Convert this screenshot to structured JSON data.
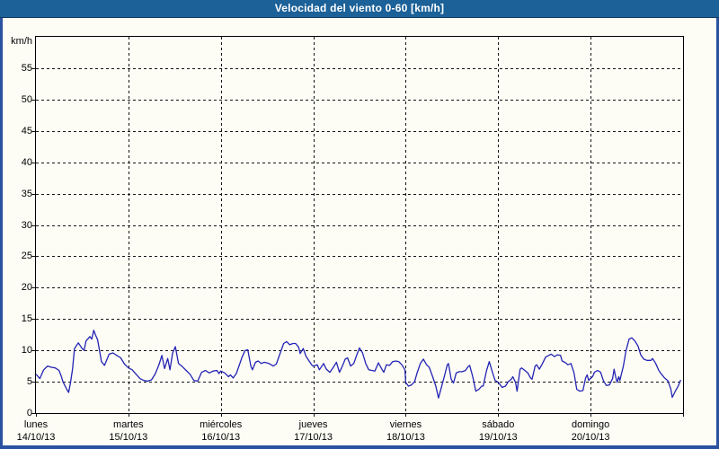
{
  "window": {
    "title": "Velocidad del viento 0-60 [km/h]",
    "title_bar_color": "#1c6198",
    "frame_color": "#2a52a0",
    "background_color": "#fdfdf6"
  },
  "chart_data": {
    "type": "line",
    "title": "Velocidad del viento 0-60 [km/h]",
    "ylabel": "km/h",
    "xlabel": "",
    "ylim": [
      0,
      60
    ],
    "xlim_hours": [
      0,
      168
    ],
    "y_ticks": [
      0,
      5,
      10,
      15,
      20,
      25,
      30,
      35,
      40,
      45,
      50,
      55
    ],
    "grid": "dashed",
    "legend": "none",
    "grid_color": "#141414",
    "x_categories": [
      {
        "day": "lunes",
        "date": "14/10/13"
      },
      {
        "day": "martes",
        "date": "15/10/13"
      },
      {
        "day": "miércoles",
        "date": "16/10/13"
      },
      {
        "day": "jueves",
        "date": "17/10/13"
      },
      {
        "day": "viernes",
        "date": "18/10/13"
      },
      {
        "day": "sábado",
        "date": "19/10/13"
      },
      {
        "day": "domingo",
        "date": "20/10/13"
      }
    ],
    "series": [
      {
        "name": "velocidad del viento",
        "color": "#2323b4",
        "x_unit": "hours_from_start",
        "points": [
          [
            0,
            6.2
          ],
          [
            1,
            5.5
          ],
          [
            2,
            6.9
          ],
          [
            3,
            7.5
          ],
          [
            4,
            7.3
          ],
          [
            5,
            7.2
          ],
          [
            6,
            6.8
          ],
          [
            6.5,
            6.0
          ],
          [
            7,
            5.0
          ],
          [
            8,
            3.8
          ],
          [
            8.5,
            3.3
          ],
          [
            9,
            5.0
          ],
          [
            9.5,
            7.0
          ],
          [
            10,
            10.3
          ],
          [
            11,
            11.2
          ],
          [
            12,
            10.3
          ],
          [
            12.5,
            10.0
          ],
          [
            13,
            11.5
          ],
          [
            14,
            12.2
          ],
          [
            14.5,
            11.8
          ],
          [
            15,
            13.2
          ],
          [
            15.5,
            12.4
          ],
          [
            16,
            11.7
          ],
          [
            17,
            8.2
          ],
          [
            17.8,
            7.6
          ],
          [
            19,
            9.4
          ],
          [
            20,
            9.6
          ],
          [
            21,
            9.2
          ],
          [
            22,
            8.8
          ],
          [
            23,
            7.8
          ],
          [
            24,
            7.2
          ],
          [
            25,
            6.9
          ],
          [
            26,
            6.2
          ],
          [
            27,
            5.5
          ],
          [
            28,
            5.2
          ],
          [
            29,
            5.1
          ],
          [
            30,
            5.3
          ],
          [
            31,
            6.3
          ],
          [
            32,
            7.8
          ],
          [
            32.7,
            9.2
          ],
          [
            33.4,
            7.1
          ],
          [
            34.2,
            8.7
          ],
          [
            34.8,
            6.9
          ],
          [
            35.5,
            9.6
          ],
          [
            36.2,
            10.6
          ],
          [
            37,
            7.9
          ],
          [
            38,
            7.4
          ],
          [
            39,
            6.8
          ],
          [
            40,
            6.2
          ],
          [
            41,
            5.2
          ],
          [
            42,
            5.1
          ],
          [
            43,
            6.5
          ],
          [
            44,
            6.8
          ],
          [
            45,
            6.4
          ],
          [
            46,
            6.7
          ],
          [
            47,
            6.8
          ],
          [
            47.5,
            6.3
          ],
          [
            48,
            6.7
          ],
          [
            49,
            6.4
          ],
          [
            50,
            5.8
          ],
          [
            50.5,
            6.1
          ],
          [
            51.2,
            5.6
          ],
          [
            52,
            6.3
          ],
          [
            52.7,
            7.5
          ],
          [
            53.5,
            8.9
          ],
          [
            54.3,
            10.0
          ],
          [
            55,
            10.1
          ],
          [
            55.8,
            7.5
          ],
          [
            56.2,
            6.9
          ],
          [
            57,
            8.1
          ],
          [
            57.7,
            8.3
          ],
          [
            58.5,
            7.9
          ],
          [
            59.3,
            8.1
          ],
          [
            60.5,
            7.9
          ],
          [
            61.6,
            7.5
          ],
          [
            62.4,
            7.8
          ],
          [
            63.6,
            9.9
          ],
          [
            64.3,
            11.1
          ],
          [
            65.1,
            11.4
          ],
          [
            65.9,
            10.9
          ],
          [
            66.7,
            11.1
          ],
          [
            67.4,
            11.1
          ],
          [
            68.2,
            10.5
          ],
          [
            68.6,
            9.5
          ],
          [
            69.4,
            10.3
          ],
          [
            70.1,
            9.1
          ],
          [
            70.9,
            8.3
          ],
          [
            71.7,
            7.6
          ],
          [
            72,
            7.5
          ],
          [
            73,
            7.7
          ],
          [
            73.6,
            6.9
          ],
          [
            74.7,
            7.9
          ],
          [
            75.4,
            7.0
          ],
          [
            76.3,
            6.5
          ],
          [
            77.2,
            7.3
          ],
          [
            78,
            8.1
          ],
          [
            78.8,
            6.5
          ],
          [
            79.5,
            7.4
          ],
          [
            80.3,
            8.6
          ],
          [
            80.9,
            8.8
          ],
          [
            81.7,
            7.5
          ],
          [
            82.5,
            7.9
          ],
          [
            83.3,
            9.3
          ],
          [
            84,
            10.4
          ],
          [
            84.8,
            9.6
          ],
          [
            85.6,
            7.9
          ],
          [
            86.4,
            6.9
          ],
          [
            87.2,
            6.8
          ],
          [
            88,
            6.7
          ],
          [
            88.9,
            8.0
          ],
          [
            89.9,
            6.9
          ],
          [
            90.3,
            6.5
          ],
          [
            91,
            7.7
          ],
          [
            91.8,
            7.6
          ],
          [
            92.6,
            8.2
          ],
          [
            93.4,
            8.3
          ],
          [
            94.2,
            8.2
          ],
          [
            95,
            7.7
          ],
          [
            95.8,
            6.9
          ],
          [
            96,
            4.9
          ],
          [
            96.7,
            4.3
          ],
          [
            97.5,
            4.5
          ],
          [
            98.3,
            5.0
          ],
          [
            99,
            6.5
          ],
          [
            99.8,
            7.9
          ],
          [
            100.6,
            8.6
          ],
          [
            101.4,
            7.7
          ],
          [
            102.1,
            7.3
          ],
          [
            103,
            5.8
          ],
          [
            103.8,
            4.3
          ],
          [
            104.5,
            2.4
          ],
          [
            105.3,
            4.2
          ],
          [
            106,
            5.8
          ],
          [
            106.8,
            7.7
          ],
          [
            107.1,
            7.9
          ],
          [
            107.8,
            5.4
          ],
          [
            108.4,
            4.8
          ],
          [
            109.1,
            6.4
          ],
          [
            109.9,
            6.6
          ],
          [
            110.7,
            6.6
          ],
          [
            111.5,
            6.8
          ],
          [
            112.2,
            7.4
          ],
          [
            112.6,
            7.6
          ],
          [
            113.4,
            5.8
          ],
          [
            114.2,
            3.5
          ],
          [
            115,
            3.8
          ],
          [
            115.7,
            4.3
          ],
          [
            116.1,
            4.3
          ],
          [
            117,
            6.8
          ],
          [
            117.7,
            8.2
          ],
          [
            118.5,
            6.5
          ],
          [
            119.2,
            5.2
          ],
          [
            119.8,
            5.0
          ],
          [
            120.3,
            4.7
          ],
          [
            121,
            4.1
          ],
          [
            121.9,
            4.3
          ],
          [
            122.6,
            5.0
          ],
          [
            123.4,
            5.4
          ],
          [
            123.8,
            5.8
          ],
          [
            124.5,
            4.9
          ],
          [
            124.9,
            3.5
          ],
          [
            125.7,
            7.0
          ],
          [
            126.1,
            7.2
          ],
          [
            126.9,
            6.8
          ],
          [
            127.7,
            6.4
          ],
          [
            128.4,
            5.6
          ],
          [
            128.8,
            5.4
          ],
          [
            129.6,
            7.5
          ],
          [
            130,
            7.7
          ],
          [
            130.7,
            7.0
          ],
          [
            131.5,
            7.9
          ],
          [
            132.3,
            8.9
          ],
          [
            133.1,
            9.2
          ],
          [
            133.8,
            9.4
          ],
          [
            134.6,
            9.0
          ],
          [
            135.4,
            9.3
          ],
          [
            136.2,
            9.2
          ],
          [
            136.6,
            8.3
          ],
          [
            137.3,
            8.1
          ],
          [
            138.1,
            7.7
          ],
          [
            138.9,
            7.9
          ],
          [
            139.7,
            6.4
          ],
          [
            140.4,
            3.8
          ],
          [
            141.2,
            3.5
          ],
          [
            142,
            3.6
          ],
          [
            142.7,
            5.6
          ],
          [
            143.1,
            6.1
          ],
          [
            143.5,
            5.2
          ],
          [
            143.9,
            5.5
          ],
          [
            144.5,
            5.8
          ],
          [
            145,
            6.5
          ],
          [
            145.8,
            6.8
          ],
          [
            146.6,
            6.5
          ],
          [
            147.3,
            5.2
          ],
          [
            148.1,
            4.4
          ],
          [
            148.9,
            4.5
          ],
          [
            149.7,
            5.5
          ],
          [
            150.1,
            7.0
          ],
          [
            150.5,
            5.8
          ],
          [
            150.9,
            4.9
          ],
          [
            151.3,
            5.8
          ],
          [
            151.6,
            5.2
          ],
          [
            152.5,
            7.5
          ],
          [
            153.2,
            10.0
          ],
          [
            154,
            11.8
          ],
          [
            154.7,
            12.0
          ],
          [
            155.5,
            11.5
          ],
          [
            156.3,
            10.7
          ],
          [
            157,
            9.3
          ],
          [
            157.8,
            8.6
          ],
          [
            158.6,
            8.4
          ],
          [
            159.7,
            8.4
          ],
          [
            160.1,
            8.7
          ],
          [
            160.9,
            7.9
          ],
          [
            161.7,
            6.8
          ],
          [
            162.4,
            6.2
          ],
          [
            163.2,
            5.6
          ],
          [
            164,
            5.2
          ],
          [
            164.8,
            3.9
          ],
          [
            165.2,
            2.5
          ],
          [
            166,
            3.5
          ],
          [
            166.8,
            4.4
          ],
          [
            167.4,
            5.3
          ]
        ]
      }
    ]
  }
}
